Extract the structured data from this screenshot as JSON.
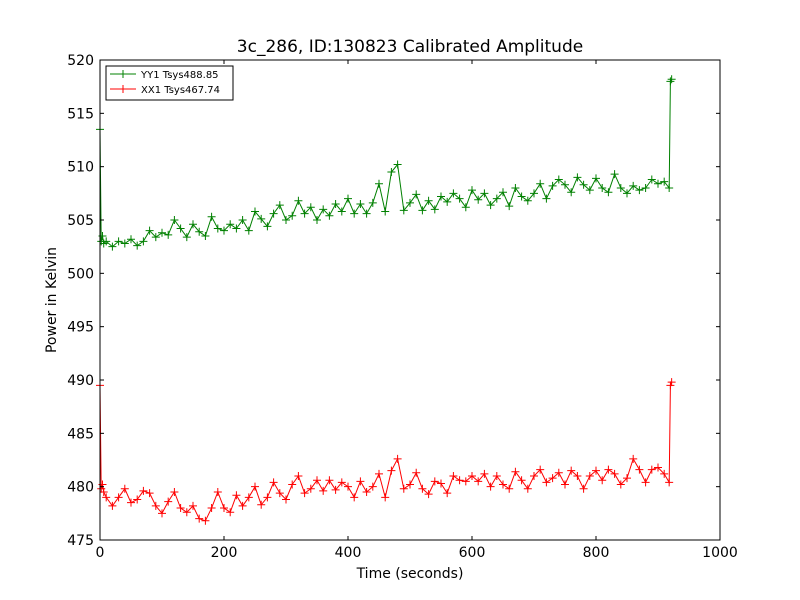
{
  "chart_data": {
    "type": "line",
    "title": "3c_286, ID:130823 Calibrated Amplitude",
    "xlabel": "Time (seconds)",
    "ylabel": "Power in Kelvin",
    "xlim": [
      0,
      1000
    ],
    "ylim": [
      475,
      520
    ],
    "xticks": [
      0,
      200,
      400,
      600,
      800,
      1000
    ],
    "yticks": [
      475,
      480,
      485,
      490,
      495,
      500,
      505,
      510,
      515,
      520
    ],
    "grid": false,
    "legend_position": "top-left",
    "marker": "+",
    "series": [
      {
        "name": "YY1 Tsys488.85",
        "color": "#008000",
        "x": [
          0,
          2,
          4,
          6,
          10,
          20,
          30,
          40,
          50,
          60,
          70,
          80,
          90,
          100,
          110,
          120,
          130,
          140,
          150,
          160,
          170,
          180,
          190,
          200,
          210,
          220,
          230,
          240,
          250,
          260,
          270,
          280,
          290,
          300,
          310,
          320,
          330,
          340,
          350,
          360,
          370,
          380,
          390,
          400,
          410,
          420,
          430,
          440,
          450,
          460,
          470,
          480,
          490,
          500,
          510,
          520,
          530,
          540,
          550,
          560,
          570,
          580,
          590,
          600,
          610,
          620,
          630,
          640,
          650,
          660,
          670,
          680,
          690,
          700,
          710,
          720,
          730,
          740,
          750,
          760,
          770,
          780,
          790,
          800,
          810,
          820,
          830,
          840,
          850,
          860,
          870,
          880,
          890,
          900,
          910,
          918,
          920,
          922
        ],
        "y": [
          513.5,
          503.0,
          503.5,
          502.8,
          503.0,
          502.5,
          503.0,
          502.8,
          503.2,
          502.6,
          503.0,
          504.0,
          503.4,
          503.8,
          503.6,
          505.0,
          504.2,
          503.4,
          504.6,
          503.9,
          503.5,
          505.3,
          504.2,
          504.0,
          504.6,
          504.2,
          505.0,
          504.0,
          505.8,
          505.1,
          504.4,
          505.6,
          506.4,
          505.0,
          505.4,
          506.8,
          505.6,
          506.2,
          505.0,
          506.0,
          505.4,
          506.5,
          505.8,
          507.0,
          505.6,
          506.5,
          505.6,
          506.6,
          508.4,
          505.8,
          509.5,
          510.2,
          505.9,
          506.6,
          507.4,
          505.9,
          506.8,
          506.0,
          507.2,
          506.7,
          507.5,
          507.0,
          506.2,
          507.8,
          506.9,
          507.5,
          506.4,
          507.0,
          507.6,
          506.3,
          508.0,
          507.2,
          506.8,
          507.5,
          508.4,
          507.0,
          508.2,
          508.8,
          508.3,
          507.6,
          509.0,
          508.3,
          507.8,
          508.9,
          508.0,
          507.6,
          509.3,
          508.0,
          507.5,
          508.2,
          507.8,
          508.0,
          508.8,
          508.4,
          508.6,
          508.0,
          518.0,
          518.2
        ]
      },
      {
        "name": "XX1 Tsys467.74",
        "color": "#ff0000",
        "x": [
          0,
          2,
          4,
          6,
          10,
          20,
          30,
          40,
          50,
          60,
          70,
          80,
          90,
          100,
          110,
          120,
          130,
          140,
          150,
          160,
          170,
          180,
          190,
          200,
          210,
          220,
          230,
          240,
          250,
          260,
          270,
          280,
          290,
          300,
          310,
          320,
          330,
          340,
          350,
          360,
          370,
          380,
          390,
          400,
          410,
          420,
          430,
          440,
          450,
          460,
          470,
          480,
          490,
          500,
          510,
          520,
          530,
          540,
          550,
          560,
          570,
          580,
          590,
          600,
          610,
          620,
          630,
          640,
          650,
          660,
          670,
          680,
          690,
          700,
          710,
          720,
          730,
          740,
          750,
          760,
          770,
          780,
          790,
          800,
          810,
          820,
          830,
          840,
          850,
          860,
          870,
          880,
          890,
          900,
          910,
          918,
          920,
          922
        ],
        "y": [
          489.5,
          479.8,
          480.2,
          479.5,
          479.0,
          478.2,
          479.0,
          479.8,
          478.5,
          478.8,
          479.6,
          479.4,
          478.2,
          477.5,
          478.6,
          479.5,
          478.0,
          477.6,
          478.2,
          477.0,
          476.8,
          478.0,
          479.5,
          478.0,
          477.6,
          479.2,
          478.2,
          479.0,
          480.0,
          478.3,
          479.0,
          480.4,
          479.4,
          478.8,
          480.2,
          481.0,
          479.4,
          479.8,
          480.6,
          479.6,
          480.6,
          479.7,
          480.4,
          480.0,
          479.0,
          480.5,
          479.5,
          480.0,
          481.2,
          479.0,
          481.5,
          482.6,
          479.8,
          480.2,
          481.3,
          479.8,
          479.3,
          480.5,
          480.3,
          479.4,
          481.0,
          480.6,
          480.5,
          481.0,
          480.5,
          481.2,
          480.0,
          481.0,
          480.2,
          479.8,
          481.4,
          480.6,
          479.8,
          481.0,
          481.6,
          480.4,
          480.8,
          481.3,
          480.2,
          481.5,
          481.0,
          479.8,
          481.0,
          481.5,
          480.6,
          481.6,
          481.2,
          480.2,
          480.8,
          482.6,
          481.6,
          480.4,
          481.6,
          481.8,
          481.2,
          480.4,
          489.5,
          489.8
        ]
      }
    ]
  }
}
